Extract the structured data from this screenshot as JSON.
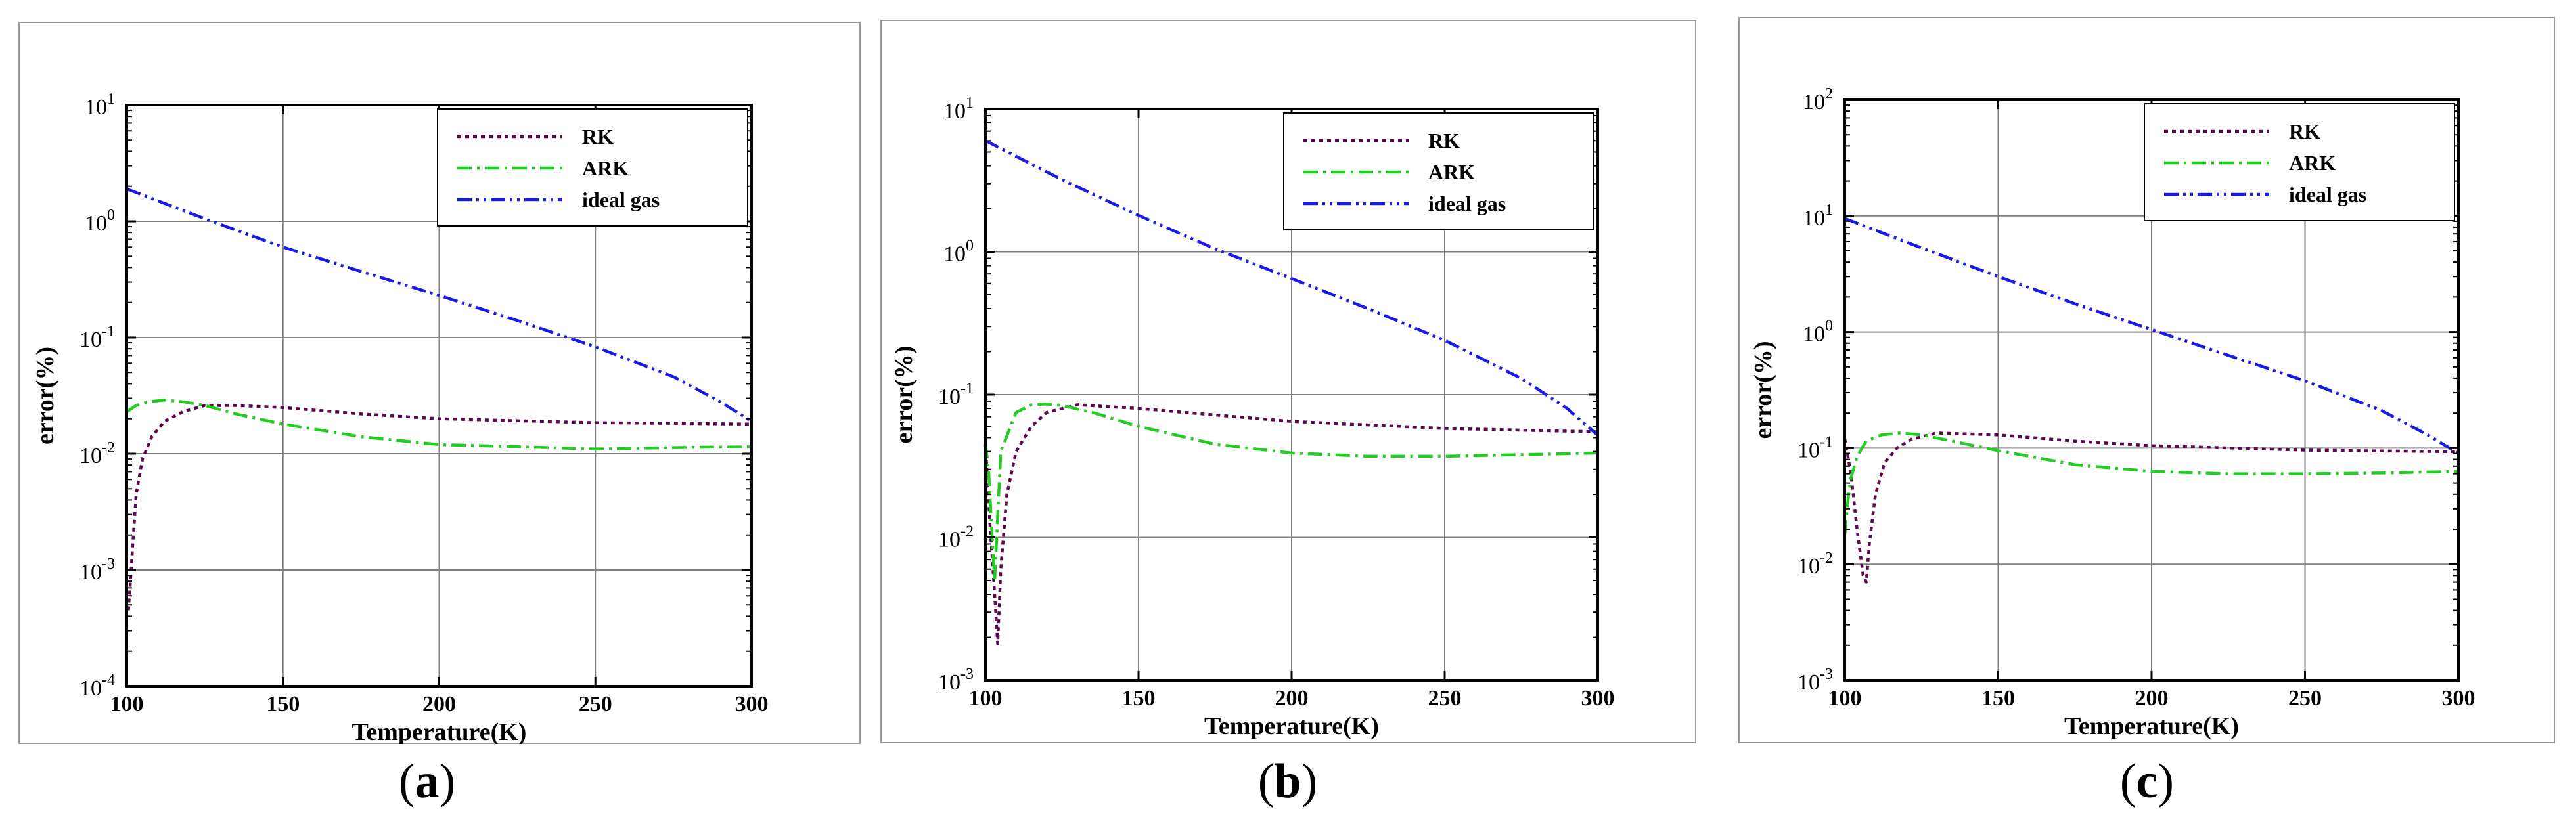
{
  "colors": {
    "rk": "#5a0a4a",
    "ark": "#22cc22",
    "ideal_gas": "#1a1ae6",
    "grid": "#7f7f7f",
    "axis": "#000000",
    "frame": "#9a9a9a"
  },
  "chart_data": [
    {
      "type": "line",
      "panel": "a",
      "caption_open": "(",
      "caption_letter": "a",
      "caption_close": ")",
      "xlabel": "Temperature(K)",
      "ylabel": "error(%)",
      "yscale": "log",
      "xlim": [
        100,
        300
      ],
      "ylim_exp": [
        -4,
        1
      ],
      "x_ticks": [
        100,
        150,
        200,
        250,
        300
      ],
      "y_tick_exponents": [
        -4,
        -3,
        -2,
        -1,
        0,
        1
      ],
      "grid": true,
      "legend_position": "top-right",
      "series": [
        {
          "name": "RK",
          "key": "rk",
          "dash": "6,6",
          "x": [
            100.5,
            101,
            102,
            103,
            105,
            108,
            112,
            118,
            125,
            135,
            150,
            175,
            200,
            250,
            300
          ],
          "y": [
            0.00045,
            0.0007,
            0.0018,
            0.0045,
            0.009,
            0.014,
            0.019,
            0.023,
            0.026,
            0.026,
            0.025,
            0.022,
            0.02,
            0.0185,
            0.018
          ]
        },
        {
          "name": "ARK",
          "key": "ark",
          "dash": "22,8,4,8",
          "x": [
            100,
            103,
            107,
            112,
            118,
            125,
            135,
            150,
            175,
            200,
            225,
            250,
            275,
            300
          ],
          "y": [
            0.023,
            0.026,
            0.028,
            0.029,
            0.028,
            0.026,
            0.022,
            0.018,
            0.014,
            0.012,
            0.0115,
            0.011,
            0.0113,
            0.0115
          ]
        },
        {
          "name": "ideal gas",
          "key": "ideal_gas",
          "dash": "22,7,4,7,4,7",
          "x": [
            100,
            125,
            150,
            175,
            200,
            225,
            250,
            275,
            290,
            300
          ],
          "y": [
            1.9,
            1.05,
            0.6,
            0.37,
            0.23,
            0.14,
            0.083,
            0.046,
            0.028,
            0.019
          ]
        }
      ]
    },
    {
      "type": "line",
      "panel": "b",
      "caption_open": "(",
      "caption_letter": "b",
      "caption_close": ")",
      "xlabel": "Temperature(K)",
      "ylabel": "error(%)",
      "yscale": "log",
      "xlim": [
        100,
        300
      ],
      "ylim_exp": [
        -3,
        1
      ],
      "x_ticks": [
        100,
        150,
        200,
        250,
        300
      ],
      "y_tick_exponents": [
        -3,
        -2,
        -1,
        0,
        1
      ],
      "grid": true,
      "legend_position": "top-right",
      "series": [
        {
          "name": "RK",
          "key": "rk",
          "dash": "6,6",
          "x": [
            100,
            101.5,
            103,
            104,
            105,
            107,
            110,
            115,
            120,
            130,
            150,
            175,
            200,
            250,
            300
          ],
          "y": [
            0.045,
            0.012,
            0.004,
            0.0018,
            0.006,
            0.02,
            0.04,
            0.06,
            0.075,
            0.085,
            0.08,
            0.072,
            0.065,
            0.058,
            0.055
          ]
        },
        {
          "name": "ARK",
          "key": "ark",
          "dash": "22,8,4,8",
          "x": [
            100,
            101,
            102,
            103,
            105,
            110,
            115,
            120,
            125,
            135,
            150,
            175,
            200,
            225,
            250,
            275,
            300
          ],
          "y": [
            0.045,
            0.03,
            0.012,
            0.005,
            0.04,
            0.075,
            0.085,
            0.086,
            0.084,
            0.075,
            0.06,
            0.045,
            0.039,
            0.037,
            0.037,
            0.038,
            0.039
          ]
        },
        {
          "name": "ideal gas",
          "key": "ideal_gas",
          "dash": "22,7,4,7,4,7",
          "x": [
            100,
            125,
            150,
            175,
            200,
            225,
            250,
            275,
            290,
            300
          ],
          "y": [
            6.0,
            3.2,
            1.8,
            1.05,
            0.65,
            0.4,
            0.24,
            0.13,
            0.08,
            0.052
          ]
        }
      ]
    },
    {
      "type": "line",
      "panel": "c",
      "caption_open": "(",
      "caption_letter": "c",
      "caption_close": ")",
      "xlabel": "Temperature(K)",
      "ylabel": "error(%)",
      "yscale": "log",
      "xlim": [
        100,
        300
      ],
      "ylim_exp": [
        -3,
        2
      ],
      "x_ticks": [
        100,
        150,
        200,
        250,
        300
      ],
      "y_tick_exponents": [
        -3,
        -2,
        -1,
        0,
        1,
        2
      ],
      "grid": true,
      "legend_position": "top-right",
      "series": [
        {
          "name": "RK",
          "key": "rk",
          "dash": "6,6",
          "x": [
            100,
            102,
            104,
            106,
            107,
            108,
            110,
            113,
            117,
            122,
            130,
            150,
            175,
            200,
            250,
            300
          ],
          "y": [
            0.12,
            0.06,
            0.02,
            0.008,
            0.007,
            0.015,
            0.04,
            0.075,
            0.1,
            0.12,
            0.135,
            0.13,
            0.115,
            0.105,
            0.096,
            0.093
          ]
        },
        {
          "name": "ARK",
          "key": "ark",
          "dash": "22,8,4,8",
          "x": [
            100,
            101,
            102,
            104,
            107,
            112,
            118,
            125,
            135,
            150,
            175,
            200,
            225,
            250,
            275,
            300
          ],
          "y": [
            0.018,
            0.035,
            0.055,
            0.085,
            0.115,
            0.13,
            0.135,
            0.13,
            0.115,
            0.095,
            0.072,
            0.063,
            0.06,
            0.06,
            0.061,
            0.063
          ]
        },
        {
          "name": "ideal gas",
          "key": "ideal_gas",
          "dash": "22,7,4,7,4,7",
          "x": [
            100,
            125,
            150,
            175,
            200,
            225,
            250,
            275,
            290,
            300
          ],
          "y": [
            9.5,
            5.3,
            3.0,
            1.75,
            1.05,
            0.63,
            0.38,
            0.21,
            0.13,
            0.09
          ]
        }
      ]
    }
  ]
}
